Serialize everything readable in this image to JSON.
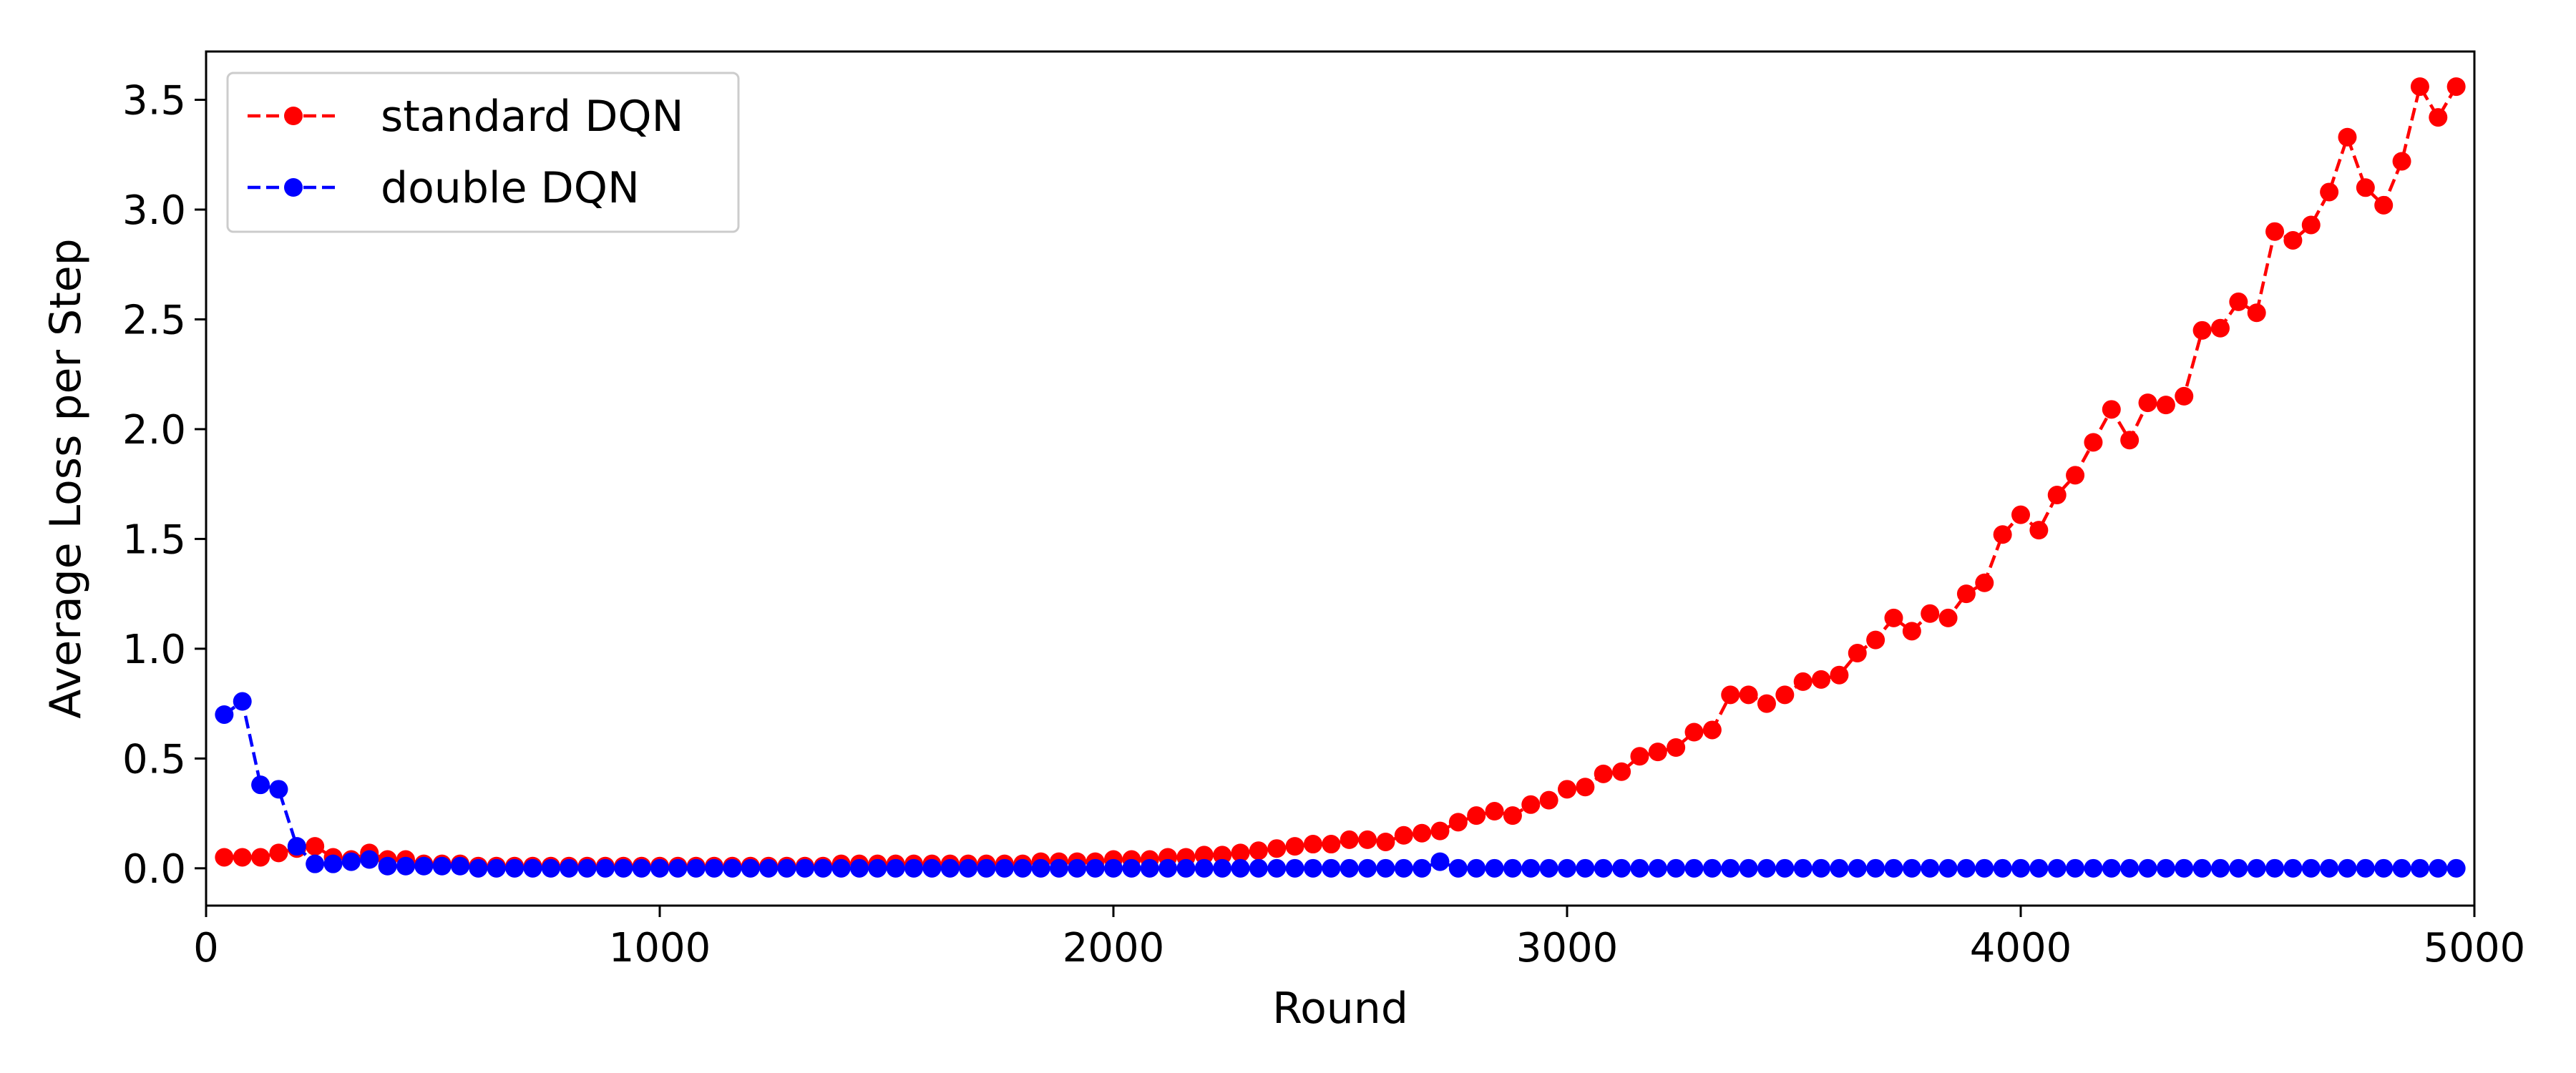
{
  "chart_data": {
    "type": "line",
    "title": "",
    "xlabel": "Round",
    "ylabel": "Average Loss per Step",
    "xlim": [
      0,
      5000
    ],
    "ylim": [
      -0.17,
      3.72
    ],
    "xticks": [
      "0",
      "1000",
      "2000",
      "3000",
      "4000",
      "5000"
    ],
    "yticks": [
      "0.0",
      "0.5",
      "1.0",
      "1.5",
      "2.0",
      "2.5",
      "3.0",
      "3.5"
    ],
    "grid": false,
    "legend_position": "top-left",
    "series": [
      {
        "name": "standard DQN",
        "color": "#ff0000",
        "line_style": "dashed",
        "marker": "circle",
        "x": [
          40,
          80,
          120,
          160,
          200,
          240,
          280,
          320,
          360,
          400,
          440,
          480,
          520,
          560,
          600,
          640,
          680,
          720,
          760,
          800,
          840,
          880,
          920,
          960,
          1000,
          1040,
          1080,
          1120,
          1160,
          1200,
          1240,
          1280,
          1320,
          1360,
          1400,
          1440,
          1480,
          1520,
          1560,
          1600,
          1640,
          1680,
          1720,
          1760,
          1800,
          1840,
          1880,
          1920,
          1960,
          2000,
          2040,
          2080,
          2120,
          2160,
          2200,
          2240,
          2280,
          2320,
          2360,
          2400,
          2440,
          2480,
          2520,
          2560,
          2600,
          2640,
          2680,
          2720,
          2760,
          2800,
          2840,
          2880,
          2920,
          2960,
          3000,
          3040,
          3080,
          3120,
          3160,
          3200,
          3240,
          3280,
          3320,
          3360,
          3400,
          3440,
          3480,
          3520,
          3560,
          3600,
          3640,
          3680,
          3720,
          3760,
          3800,
          3840,
          3880,
          3920,
          3960,
          4000,
          4040,
          4080,
          4120,
          4160,
          4200,
          4240,
          4280,
          4320,
          4360,
          4400,
          4440,
          4480,
          4520,
          4560,
          4600,
          4640,
          4680,
          4720,
          4760,
          4800,
          4840,
          4880,
          4920,
          4960
        ],
        "y": [
          0.05,
          0.05,
          0.05,
          0.07,
          0.09,
          0.1,
          0.05,
          0.04,
          0.07,
          0.04,
          0.04,
          0.02,
          0.02,
          0.02,
          0.01,
          0.01,
          0.01,
          0.01,
          0.01,
          0.01,
          0.01,
          0.01,
          0.01,
          0.01,
          0.01,
          0.01,
          0.01,
          0.01,
          0.01,
          0.01,
          0.01,
          0.01,
          0.01,
          0.01,
          0.02,
          0.02,
          0.02,
          0.02,
          0.02,
          0.02,
          0.02,
          0.02,
          0.02,
          0.02,
          0.02,
          0.03,
          0.03,
          0.03,
          0.03,
          0.04,
          0.04,
          0.04,
          0.05,
          0.05,
          0.06,
          0.06,
          0.07,
          0.08,
          0.09,
          0.1,
          0.11,
          0.11,
          0.13,
          0.13,
          0.12,
          0.15,
          0.16,
          0.17,
          0.21,
          0.24,
          0.26,
          0.24,
          0.29,
          0.31,
          0.36,
          0.37,
          0.43,
          0.44,
          0.51,
          0.53,
          0.55,
          0.62,
          0.63,
          0.79,
          0.79,
          0.75,
          0.79,
          0.85,
          0.86,
          0.88,
          0.98,
          1.04,
          1.14,
          1.08,
          1.16,
          1.14,
          1.25,
          1.3,
          1.52,
          1.61,
          1.54,
          1.7,
          1.79,
          1.94,
          2.09,
          1.95,
          2.12,
          2.11,
          2.15,
          2.45,
          2.46,
          2.58,
          2.53,
          2.9,
          2.86,
          2.93,
          3.08,
          3.33,
          3.1,
          3.02,
          3.22,
          3.56,
          3.42,
          3.56
        ]
      },
      {
        "name": "double DQN",
        "color": "#0000ff",
        "line_style": "dashed",
        "marker": "circle",
        "x": [
          40,
          80,
          120,
          160,
          200,
          240,
          280,
          320,
          360,
          400,
          440,
          480,
          520,
          560,
          600,
          640,
          680,
          720,
          760,
          800,
          840,
          880,
          920,
          960,
          1000,
          1040,
          1080,
          1120,
          1160,
          1200,
          1240,
          1280,
          1320,
          1360,
          1400,
          1440,
          1480,
          1520,
          1560,
          1600,
          1640,
          1680,
          1720,
          1760,
          1800,
          1840,
          1880,
          1920,
          1960,
          2000,
          2040,
          2080,
          2120,
          2160,
          2200,
          2240,
          2280,
          2320,
          2360,
          2400,
          2440,
          2480,
          2520,
          2560,
          2600,
          2640,
          2680,
          2720,
          2760,
          2800,
          2840,
          2880,
          2920,
          2960,
          3000,
          3040,
          3080,
          3120,
          3160,
          3200,
          3240,
          3280,
          3320,
          3360,
          3400,
          3440,
          3480,
          3520,
          3560,
          3600,
          3640,
          3680,
          3720,
          3760,
          3800,
          3840,
          3880,
          3920,
          3960,
          4000,
          4040,
          4080,
          4120,
          4160,
          4200,
          4240,
          4280,
          4320,
          4360,
          4400,
          4440,
          4480,
          4520,
          4560,
          4600,
          4640,
          4680,
          4720,
          4760,
          4800,
          4840,
          4880,
          4920,
          4960
        ],
        "y": [
          0.7,
          0.76,
          0.38,
          0.36,
          0.1,
          0.02,
          0.02,
          0.03,
          0.04,
          0.01,
          0.01,
          0.01,
          0.01,
          0.01,
          0.0,
          0.0,
          0.0,
          0.0,
          0.0,
          0.0,
          0.0,
          0.0,
          0.0,
          0.0,
          0.0,
          0.0,
          0.0,
          0.0,
          0.0,
          0.0,
          0.0,
          0.0,
          0.0,
          0.0,
          0.0,
          0.0,
          0.0,
          0.0,
          0.0,
          0.0,
          0.0,
          0.0,
          0.0,
          0.0,
          0.0,
          0.0,
          0.0,
          0.0,
          0.0,
          0.0,
          0.0,
          0.0,
          0.0,
          0.0,
          0.0,
          0.0,
          0.0,
          0.0,
          0.0,
          0.0,
          0.0,
          0.0,
          0.0,
          0.0,
          0.0,
          0.0,
          0.0,
          0.03,
          0.0,
          0.0,
          0.0,
          0.0,
          0.0,
          0.0,
          0.0,
          0.0,
          0.0,
          0.0,
          0.0,
          0.0,
          0.0,
          0.0,
          0.0,
          0.0,
          0.0,
          0.0,
          0.0,
          0.0,
          0.0,
          0.0,
          0.0,
          0.0,
          0.0,
          0.0,
          0.0,
          0.0,
          0.0,
          0.0,
          0.0,
          0.0,
          0.0,
          0.0,
          0.0,
          0.0,
          0.0,
          0.0,
          0.0,
          0.0,
          0.0,
          0.0,
          0.0,
          0.0,
          0.0,
          0.0,
          0.0,
          0.0,
          0.0,
          0.0,
          0.0,
          0.0,
          0.0,
          0.0,
          0.0,
          0.0
        ]
      }
    ]
  }
}
